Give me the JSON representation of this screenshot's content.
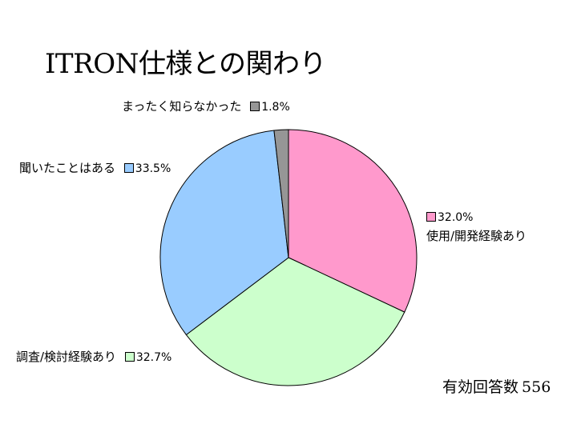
{
  "colors": {
    "slice_use": "#ff99cc",
    "slice_investigate": "#ccffcc",
    "slice_heard": "#99ccff",
    "slice_unknown": "#969696"
  },
  "chart_data": {
    "type": "pie",
    "title": "ITRON仕様との関わり",
    "slices": [
      {
        "label": "使用/開発経験あり",
        "value": 32.0,
        "pct_text": "32.0%",
        "color": "#ff99cc"
      },
      {
        "label": "調査/検討経験あり",
        "value": 32.7,
        "pct_text": "32.7%",
        "color": "#ccffcc"
      },
      {
        "label": "聞いたことはある",
        "value": 33.5,
        "pct_text": "33.5%",
        "color": "#99ccff"
      },
      {
        "label": "まったく知らなかった",
        "value": 1.8,
        "pct_text": "1.8%",
        "color": "#969696"
      }
    ],
    "start_angle_deg": 0,
    "direction": "clockwise",
    "footer": {
      "label": "有効回答数",
      "count": "556"
    }
  }
}
